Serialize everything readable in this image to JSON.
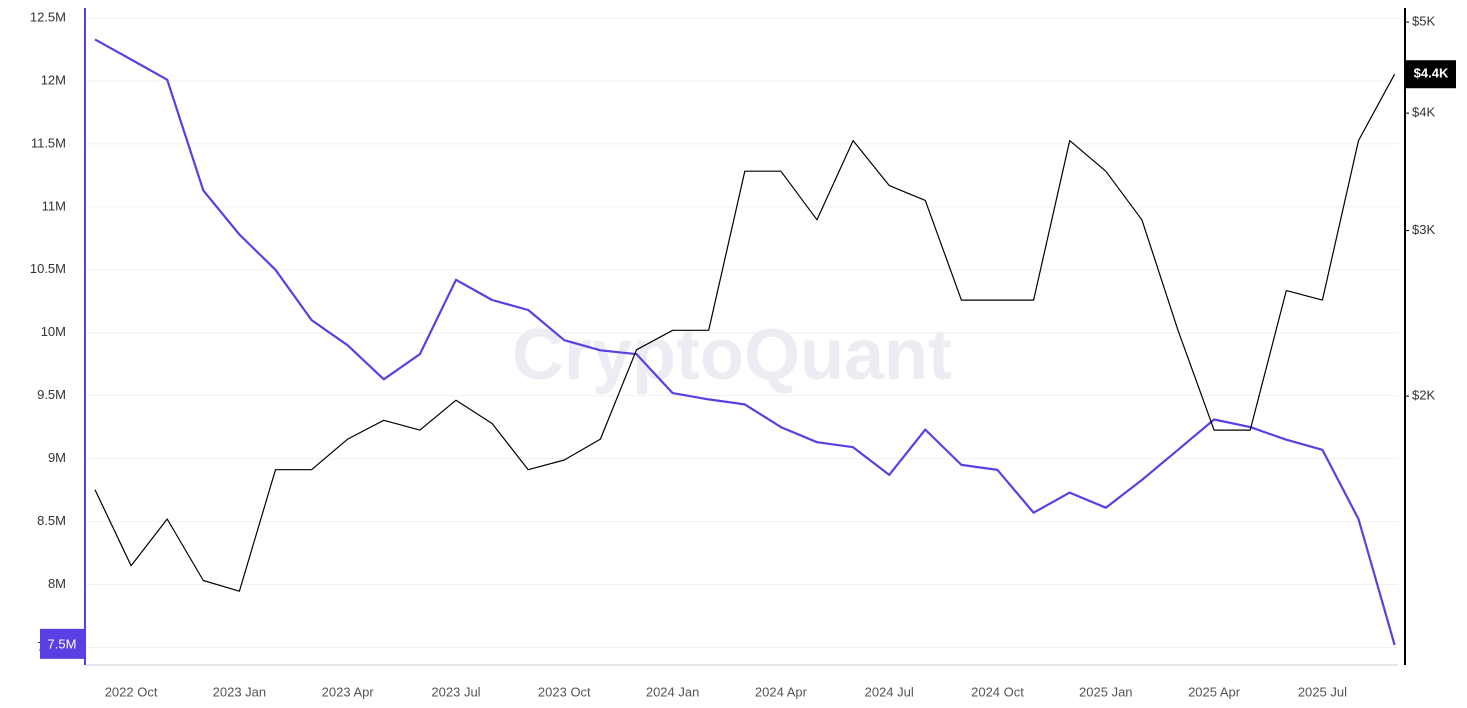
{
  "chart_data": {
    "type": "line",
    "watermark": "CryptoQuant",
    "categories": [
      null,
      "2022 Oct",
      null,
      null,
      "2023 Jan",
      null,
      null,
      "2023 Apr",
      null,
      null,
      "2023 Jul",
      null,
      null,
      "2023 Oct",
      null,
      null,
      "2024 Jan",
      null,
      null,
      "2024 Apr",
      null,
      null,
      "2024 Jul",
      null,
      null,
      "2024 Oct",
      null,
      null,
      "2025 Jan",
      null,
      null,
      "2025 Apr",
      null,
      null,
      "2025 Jul",
      null,
      null
    ],
    "series": [
      {
        "color": "#5b3fe4",
        "axis": "y",
        "values": [
          12330000,
          12170000,
          12010000,
          11130000,
          10780000,
          10500000,
          10100000,
          9900000,
          9630000,
          9830000,
          10420000,
          10260000,
          10180000,
          9940000,
          9860000,
          9830000,
          9520000,
          9470000,
          9430000,
          9250000,
          9130000,
          9090000,
          8870000,
          9230000,
          8950000,
          8910000,
          8570000,
          8730000,
          8610000,
          8830000,
          9070000,
          9310000,
          9250000,
          9150000,
          9070000,
          8520000,
          7520000
        ],
        "value_labels": [
          null,
          null,
          null,
          null,
          null,
          null,
          null,
          null,
          null,
          null,
          null,
          null,
          null,
          null,
          null,
          null,
          null,
          null,
          null,
          null,
          null,
          null,
          null,
          null,
          null,
          null,
          null,
          null,
          null,
          null,
          null,
          null,
          null,
          null,
          null,
          null,
          "7.5M"
        ]
      },
      {
        "color": "#000000",
        "axis": "y2",
        "values": [
          1590,
          1320,
          1480,
          1273,
          1240,
          1670,
          1670,
          1800,
          1885,
          1840,
          1980,
          1870,
          1670,
          1710,
          1800,
          2240,
          2350,
          2350,
          3470,
          3470,
          3080,
          3740,
          3350,
          3230,
          2530,
          2530,
          2530,
          3740,
          3470,
          3080,
          2350,
          1840,
          1840,
          2590,
          2530,
          3740,
          4400
        ],
        "value_labels": [
          null,
          null,
          null,
          null,
          null,
          null,
          null,
          null,
          null,
          null,
          null,
          null,
          null,
          null,
          null,
          null,
          null,
          null,
          null,
          null,
          null,
          null,
          null,
          null,
          null,
          null,
          null,
          null,
          null,
          null,
          null,
          null,
          null,
          null,
          null,
          null,
          "$4.4K"
        ]
      }
    ],
    "ylim": [
      7360000,
      12500000
    ],
    "yticks": [
      {
        "value": 7500000,
        "label": "7.5M"
      },
      {
        "value": 8000000,
        "label": "8M"
      },
      {
        "value": 8500000,
        "label": "8.5M"
      },
      {
        "value": 9000000,
        "label": "9M"
      },
      {
        "value": 9500000,
        "label": "9.5M"
      },
      {
        "value": 10000000,
        "label": "10M"
      },
      {
        "value": 10500000,
        "label": "10.5M"
      },
      {
        "value": 11000000,
        "label": "11M"
      },
      {
        "value": 11500000,
        "label": "11.5M"
      },
      {
        "value": 12000000,
        "label": "12M"
      },
      {
        "value": 12500000,
        "label": "12.5M"
      }
    ],
    "y2lim": [
      1035,
      5050
    ],
    "y2log": true,
    "y2ticks": [
      {
        "value": 2000,
        "label": "$2K"
      },
      {
        "value": 3000,
        "label": "$3K"
      },
      {
        "value": 4000,
        "label": "$4K"
      },
      {
        "value": 5000,
        "label": "$5K"
      }
    ],
    "grid": true
  }
}
